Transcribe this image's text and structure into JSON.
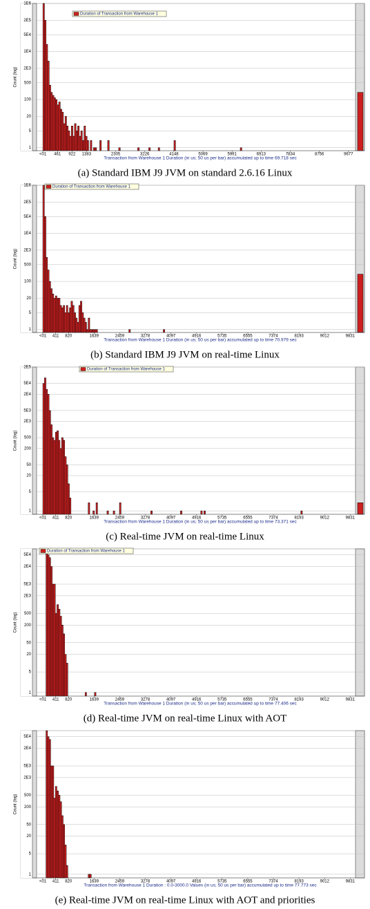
{
  "chart_data": [
    {
      "type": "bar",
      "log_y": true,
      "grid": true,
      "color": "#cc2020",
      "caption": "(a) Standard IBM J9 JVM on standard 2.6.16 Linux",
      "ylabel": "Count (log)",
      "xlabel": "Transaction from Warehouse 1 Duration (in us; 50 us per bar) accumulated up to time 69.718 sec",
      "legend_label": "Duration of Transaction from Warehouse 1",
      "x": [
        0,
        50,
        100,
        150,
        200,
        250,
        300,
        350,
        400,
        450,
        500,
        550,
        600,
        650,
        700,
        750,
        800,
        850,
        900,
        950,
        1000,
        1050,
        1100,
        1150,
        1200,
        1250,
        1300,
        1350,
        1400,
        1500,
        1600,
        1650,
        1800,
        2050,
        2400,
        3000,
        3350,
        3650,
        4150,
        6250
      ],
      "values": [
        1000000,
        200000,
        20000,
        4000,
        400,
        200,
        150,
        120,
        100,
        60,
        80,
        40,
        30,
        10,
        20,
        8,
        5,
        3,
        8,
        3,
        10,
        5,
        8,
        3,
        5,
        2,
        8,
        3,
        2,
        2,
        1,
        1,
        2,
        2,
        1,
        1,
        1,
        1,
        2,
        1
      ],
      "overflow": 200,
      "xlim": [
        -200,
        9900
      ],
      "ylim": [
        0.75,
        1000000
      ],
      "xticks": [
        {
          "value": 0,
          "label": "<01"
        },
        461,
        922,
        1383,
        2305,
        3226,
        4148,
        5069,
        5991,
        6913,
        7834,
        8756,
        9677
      ],
      "yticks": [
        1,
        5,
        20,
        100,
        500,
        {
          "value": 2000,
          "label": "2E3"
        },
        {
          "value": 10000,
          "label": "1E4"
        },
        {
          "value": 50000,
          "label": "5E4"
        },
        {
          "value": 200000,
          "label": "2E5"
        },
        {
          "value": 1000000,
          "label": "1E6"
        }
      ]
    },
    {
      "type": "bar",
      "log_y": true,
      "grid": true,
      "color": "#cc2020",
      "caption": "(b) Standard IBM J9 JVM on real-time Linux",
      "ylabel": "Count (log)",
      "xlabel": "Transaction from Warehouse 1 Duration (in us; 50 us per bar) accumulated up to time 70.979 sec",
      "legend_label": "Duration of Transaction from Warehouse 1",
      "x": [
        0,
        50,
        100,
        150,
        200,
        250,
        300,
        350,
        400,
        450,
        500,
        550,
        600,
        650,
        700,
        750,
        800,
        850,
        900,
        950,
        1000,
        1050,
        1100,
        1150,
        1200,
        1250,
        1300,
        1350,
        1400,
        1450,
        1500,
        1550,
        1600,
        1650,
        1700,
        2750,
        3850
      ],
      "values": [
        1000000,
        50000,
        1000,
        300,
        100,
        50,
        30,
        20,
        25,
        20,
        20,
        10,
        8,
        10,
        5,
        10,
        5,
        8,
        15,
        10,
        5,
        3,
        2,
        10,
        15,
        5,
        3,
        2,
        1,
        3,
        1,
        1,
        1,
        1,
        1,
        1,
        1
      ],
      "overflow": 200,
      "xlim": [
        -200,
        10000
      ],
      "ylim": [
        0.75,
        1000000
      ],
      "xticks": [
        {
          "value": 0,
          "label": "<01"
        },
        411,
        820,
        1639,
        2459,
        3278,
        4097,
        4916,
        5735,
        6555,
        7374,
        8193,
        9012,
        9831
      ],
      "yticks": [
        1,
        5,
        20,
        100,
        500,
        {
          "value": 2000,
          "label": "2E3"
        },
        {
          "value": 10000,
          "label": "1E4"
        },
        {
          "value": 50000,
          "label": "5E4"
        },
        {
          "value": 200000,
          "label": "2E5"
        },
        {
          "value": 1000000,
          "label": "1E6"
        }
      ]
    },
    {
      "type": "bar",
      "log_y": true,
      "grid": true,
      "color": "#cc2020",
      "caption": "(c) Real-time JVM on real-time Linux",
      "ylabel": "Count (log)",
      "xlabel": "Transaction from Warehouse 1 Duration (in us; 50 us per bar) accumulated up to time 73.371 sec",
      "legend_label": "Duration of Transaction from Warehouse 1",
      "x": [
        0,
        50,
        100,
        150,
        200,
        250,
        300,
        350,
        400,
        450,
        500,
        550,
        600,
        650,
        700,
        750,
        800,
        850,
        1450,
        1600,
        1700,
        2050,
        2250,
        2450,
        3450,
        4400,
        5050,
        5150,
        8250
      ],
      "values": [
        50000,
        80000,
        30000,
        20000,
        5000,
        1500,
        500,
        400,
        800,
        900,
        400,
        200,
        500,
        400,
        100,
        50,
        10,
        3,
        2,
        1,
        2,
        1,
        1,
        2,
        1,
        1,
        1,
        1,
        1
      ],
      "overflow": 2,
      "xlim": [
        -200,
        10000
      ],
      "ylim": [
        0.75,
        200000
      ],
      "xticks": [
        {
          "value": 0,
          "label": "<01"
        },
        411,
        820,
        1639,
        2459,
        3278,
        4097,
        4916,
        5735,
        6555,
        7374,
        8193,
        9012,
        9831
      ],
      "yticks": [
        1,
        5,
        20,
        50,
        200,
        500,
        {
          "value": 2000,
          "label": "2E3"
        },
        {
          "value": 5000,
          "label": "5E3"
        },
        {
          "value": 20000,
          "label": "2E4"
        },
        {
          "value": 50000,
          "label": "5E4"
        },
        {
          "value": 200000,
          "label": "2E5"
        }
      ]
    },
    {
      "type": "bar",
      "log_y": true,
      "grid": true,
      "color": "#cc2020",
      "caption": "(d) Real-time JVM on real-time Linux with AOT",
      "ylabel": "Count (log)",
      "xlabel": "Transaction from Warehouse 1 Duration (in us; 50 us per bar) accumulated up to time 77.406 sec",
      "legend_label": "Duration of Transaction from Warehouse 1",
      "x": [
        100,
        150,
        200,
        250,
        300,
        350,
        400,
        450,
        500,
        550,
        600,
        650,
        700,
        750,
        1350,
        1650
      ],
      "values": [
        80000,
        50000,
        40000,
        20000,
        5000,
        5000,
        500,
        1000,
        700,
        400,
        200,
        100,
        20,
        10,
        1,
        1
      ],
      "xlim": [
        -200,
        10000
      ],
      "ylim": [
        0.75,
        80000
      ],
      "xticks": [
        {
          "value": 0,
          "label": "<01"
        },
        411,
        820,
        1639,
        2459,
        3278,
        4097,
        4916,
        5735,
        6555,
        7374,
        8193,
        9012,
        9831
      ],
      "yticks": [
        1,
        5,
        20,
        50,
        200,
        500,
        {
          "value": 2000,
          "label": "2E3"
        },
        {
          "value": 5000,
          "label": "5E3"
        },
        {
          "value": 20000,
          "label": "2E4"
        },
        {
          "value": 50000,
          "label": "5E4"
        }
      ]
    },
    {
      "type": "bar",
      "log_y": true,
      "grid": true,
      "color": "#cc2020",
      "caption": "(e) Real-time JVM on real-time Linux with AOT and priorities",
      "ylabel": "Count (log)",
      "xlabel": "Transaction from Warehouse 1 Duration : 0.0-3000.0 Values (in us; 50 us per bar) accumulated up to time 77.773 sec",
      "x": [
        100,
        150,
        200,
        250,
        300,
        350,
        400,
        450,
        500,
        550,
        600,
        650,
        700,
        750,
        1450,
        1500
      ],
      "values": [
        80000,
        50000,
        40000,
        5000,
        5000,
        400,
        1000,
        700,
        500,
        300,
        100,
        50,
        10,
        2,
        1,
        1
      ],
      "xlim": [
        -200,
        10000
      ],
      "ylim": [
        0.75,
        80000
      ],
      "xticks": [
        {
          "value": 0,
          "label": "<01"
        },
        411,
        820,
        1639,
        2459,
        3278,
        4097,
        4916,
        5735,
        6555,
        7374,
        8193,
        9012,
        9831
      ],
      "yticks": [
        1,
        5,
        20,
        50,
        200,
        500,
        {
          "value": 2000,
          "label": "2E3"
        },
        {
          "value": 5000,
          "label": "5E3"
        },
        {
          "value": 20000,
          "label": "2E4"
        },
        {
          "value": 50000,
          "label": "5E4"
        }
      ]
    }
  ]
}
